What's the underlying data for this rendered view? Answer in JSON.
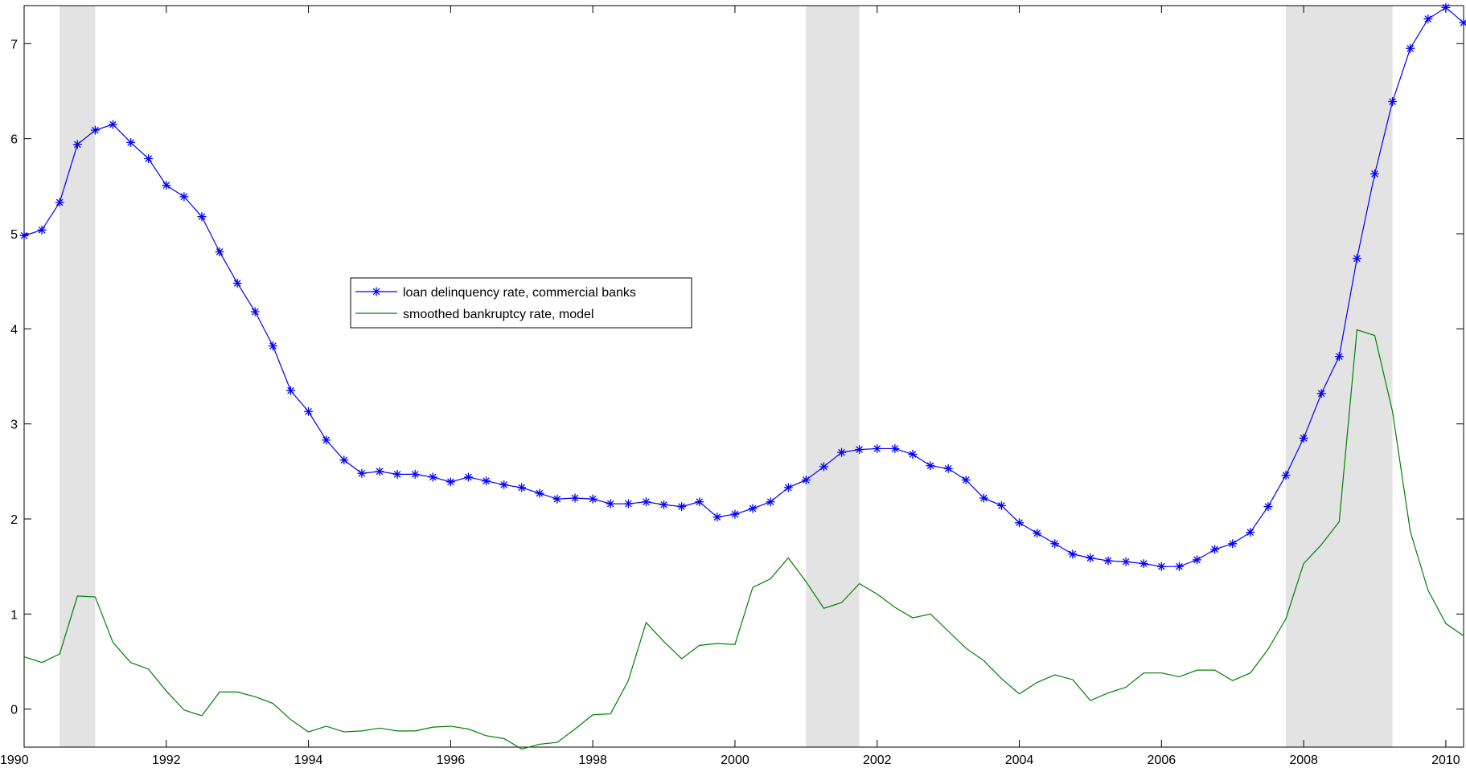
{
  "chart_data": {
    "type": "line",
    "title": "",
    "xlabel": "",
    "ylabel": "",
    "xlim": [
      1990,
      2010.25
    ],
    "ylim": [
      -0.4,
      7.4
    ],
    "x_ticks": [
      1990,
      1992,
      1994,
      1996,
      1998,
      2000,
      2002,
      2004,
      2006,
      2008,
      2010
    ],
    "x_tick_labels": [
      "1990",
      "1992",
      "1994",
      "1996",
      "1998",
      "2000",
      "2002",
      "2004",
      "2006",
      "2008",
      "2010"
    ],
    "y_ticks": [
      0,
      1,
      2,
      3,
      4,
      5,
      6,
      7
    ],
    "y_tick_labels": [
      "0",
      "1",
      "2",
      "3",
      "4",
      "5",
      "6",
      "7"
    ],
    "grid": false,
    "legend_position": "center-left",
    "recession_shading": [
      [
        1990.5,
        1991.0
      ],
      [
        2001.0,
        2001.75
      ],
      [
        2007.75,
        2009.25
      ]
    ],
    "shading_color": "#e3e3e3",
    "series": [
      {
        "name": "loan delinquency rate, commercial banks",
        "color": "#0000ff",
        "marker": "asterisk",
        "x_start": 1990.0,
        "x_step": 0.25,
        "values": [
          4.98,
          5.04,
          5.33,
          5.94,
          6.09,
          6.15,
          5.96,
          5.79,
          5.51,
          5.39,
          5.18,
          4.81,
          4.48,
          4.18,
          3.82,
          3.35,
          3.13,
          2.83,
          2.62,
          2.48,
          2.5,
          2.47,
          2.47,
          2.44,
          2.39,
          2.44,
          2.4,
          2.36,
          2.33,
          2.27,
          2.21,
          2.22,
          2.21,
          2.16,
          2.16,
          2.18,
          2.15,
          2.13,
          2.18,
          2.02,
          2.05,
          2.11,
          2.18,
          2.33,
          2.41,
          2.55,
          2.7,
          2.73,
          2.74,
          2.74,
          2.68,
          2.56,
          2.53,
          2.41,
          2.22,
          2.14,
          1.96,
          1.85,
          1.74,
          1.63,
          1.59,
          1.56,
          1.55,
          1.53,
          1.5,
          1.5,
          1.57,
          1.68,
          1.74,
          1.86,
          2.13,
          2.46,
          2.85,
          3.32,
          3.71,
          4.74,
          5.63,
          6.39,
          6.95,
          7.26,
          7.38,
          7.22
        ]
      },
      {
        "name": "smoothed bankruptcy rate, model",
        "color": "#008000",
        "marker": "none",
        "x_start": 1990.0,
        "x_step": 0.25,
        "values": [
          0.55,
          0.49,
          0.58,
          1.19,
          1.18,
          0.7,
          0.49,
          0.42,
          0.19,
          -0.01,
          -0.07,
          0.18,
          0.18,
          0.13,
          0.06,
          -0.11,
          -0.24,
          -0.18,
          -0.24,
          -0.23,
          -0.2,
          -0.23,
          -0.23,
          -0.19,
          -0.18,
          -0.21,
          -0.28,
          -0.31,
          -0.42,
          -0.37,
          -0.35,
          -0.21,
          -0.06,
          -0.05,
          0.3,
          0.91,
          0.71,
          0.53,
          0.67,
          0.69,
          0.68,
          1.28,
          1.37,
          1.59,
          1.34,
          1.06,
          1.12,
          1.32,
          1.21,
          1.07,
          0.96,
          1.0,
          0.82,
          0.64,
          0.51,
          0.32,
          0.16,
          0.28,
          0.36,
          0.31,
          0.09,
          0.17,
          0.23,
          0.38,
          0.38,
          0.34,
          0.41,
          0.41,
          0.3,
          0.38,
          0.63,
          0.95,
          1.53,
          1.73,
          1.97,
          3.99,
          3.93,
          3.13,
          1.87,
          1.25,
          0.9,
          0.77
        ]
      }
    ]
  }
}
